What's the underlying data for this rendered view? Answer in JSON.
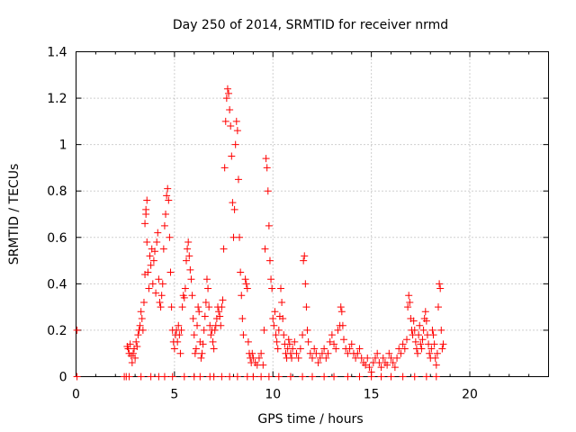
{
  "chart_data": {
    "type": "scatter",
    "title": "Day 250 of 2014, SRMTID for receiver nrmd",
    "xlabel": "GPS time / hours",
    "ylabel": "SRMTID / TECUs",
    "xlim": [
      0,
      24
    ],
    "ylim": [
      0,
      1.4
    ],
    "xticks": [
      "0",
      "5",
      "10",
      "15",
      "20"
    ],
    "yticks": [
      "0",
      "0.2",
      "0.4",
      "0.6",
      "0.8",
      "1",
      "1.2",
      "1.4"
    ],
    "grid": true,
    "marker": "plus",
    "color": "#ff0000",
    "series": [
      {
        "points": [
          [
            0.05,
            0.2
          ],
          [
            0.05,
            0.0
          ],
          [
            2.45,
            0.0
          ],
          [
            2.55,
            0.0
          ],
          [
            2.6,
            0.13
          ],
          [
            2.65,
            0.12
          ],
          [
            2.7,
            0.1
          ],
          [
            2.75,
            0.14
          ],
          [
            2.8,
            0.09
          ],
          [
            2.85,
            0.06
          ],
          [
            2.9,
            0.1
          ],
          [
            2.95,
            0.12
          ],
          [
            3.0,
            0.08
          ],
          [
            3.05,
            0.15
          ],
          [
            3.1,
            0.13
          ],
          [
            3.15,
            0.18
          ],
          [
            3.2,
            0.2
          ],
          [
            3.25,
            0.22
          ],
          [
            3.3,
            0.28
          ],
          [
            3.35,
            0.25
          ],
          [
            3.4,
            0.2
          ],
          [
            3.45,
            0.32
          ],
          [
            3.5,
            0.44
          ],
          [
            3.5,
            0.66
          ],
          [
            3.55,
            0.72
          ],
          [
            3.55,
            0.7
          ],
          [
            3.6,
            0.76
          ],
          [
            3.6,
            0.58
          ],
          [
            3.65,
            0.45
          ],
          [
            3.7,
            0.38
          ],
          [
            3.75,
            0.52
          ],
          [
            3.8,
            0.48
          ],
          [
            3.85,
            0.55
          ],
          [
            3.9,
            0.4
          ],
          [
            3.95,
            0.5
          ],
          [
            4.0,
            0.54
          ],
          [
            4.05,
            0.36
          ],
          [
            4.1,
            0.58
          ],
          [
            4.15,
            0.62
          ],
          [
            4.2,
            0.42
          ],
          [
            4.25,
            0.32
          ],
          [
            4.3,
            0.3
          ],
          [
            4.35,
            0.35
          ],
          [
            4.4,
            0.4
          ],
          [
            4.45,
            0.55
          ],
          [
            4.5,
            0.65
          ],
          [
            4.55,
            0.7
          ],
          [
            4.6,
            0.78
          ],
          [
            4.65,
            0.81
          ],
          [
            4.7,
            0.76
          ],
          [
            4.75,
            0.6
          ],
          [
            4.8,
            0.45
          ],
          [
            4.85,
            0.3
          ],
          [
            4.9,
            0.2
          ],
          [
            4.95,
            0.15
          ],
          [
            5.0,
            0.12
          ],
          [
            5.05,
            0.18
          ],
          [
            5.1,
            0.2
          ],
          [
            5.15,
            0.15
          ],
          [
            5.2,
            0.22
          ],
          [
            5.25,
            0.18
          ],
          [
            5.3,
            0.1
          ],
          [
            5.35,
            0.2
          ],
          [
            5.4,
            0.3
          ],
          [
            5.45,
            0.35
          ],
          [
            5.5,
            0.34
          ],
          [
            5.55,
            0.38
          ],
          [
            5.6,
            0.5
          ],
          [
            5.65,
            0.55
          ],
          [
            5.7,
            0.58
          ],
          [
            5.75,
            0.52
          ],
          [
            5.8,
            0.46
          ],
          [
            5.85,
            0.42
          ],
          [
            5.9,
            0.35
          ],
          [
            5.95,
            0.25
          ],
          [
            6.0,
            0.18
          ],
          [
            6.05,
            0.1
          ],
          [
            6.1,
            0.12
          ],
          [
            6.15,
            0.22
          ],
          [
            6.2,
            0.3
          ],
          [
            6.25,
            0.28
          ],
          [
            6.3,
            0.15
          ],
          [
            6.35,
            0.08
          ],
          [
            6.4,
            0.1
          ],
          [
            6.45,
            0.14
          ],
          [
            6.5,
            0.2
          ],
          [
            6.55,
            0.26
          ],
          [
            6.6,
            0.32
          ],
          [
            6.65,
            0.42
          ],
          [
            6.7,
            0.38
          ],
          [
            6.75,
            0.3
          ],
          [
            6.8,
            0.22
          ],
          [
            6.85,
            0.18
          ],
          [
            6.9,
            0.2
          ],
          [
            6.95,
            0.15
          ],
          [
            7.0,
            0.12
          ],
          [
            7.05,
            0.2
          ],
          [
            7.1,
            0.22
          ],
          [
            7.15,
            0.25
          ],
          [
            7.2,
            0.3
          ],
          [
            7.25,
            0.28
          ],
          [
            7.3,
            0.26
          ],
          [
            7.35,
            0.22
          ],
          [
            7.4,
            0.3
          ],
          [
            7.45,
            0.33
          ],
          [
            7.5,
            0.55
          ],
          [
            7.55,
            0.9
          ],
          [
            7.6,
            1.1
          ],
          [
            7.65,
            1.2
          ],
          [
            7.7,
            1.24
          ],
          [
            7.75,
            1.22
          ],
          [
            7.8,
            1.15
          ],
          [
            7.85,
            1.08
          ],
          [
            7.9,
            0.95
          ],
          [
            7.95,
            0.75
          ],
          [
            8.0,
            0.6
          ],
          [
            8.05,
            0.72
          ],
          [
            8.1,
            1.0
          ],
          [
            8.15,
            1.1
          ],
          [
            8.2,
            1.06
          ],
          [
            8.25,
            0.85
          ],
          [
            8.3,
            0.6
          ],
          [
            8.35,
            0.45
          ],
          [
            8.4,
            0.35
          ],
          [
            8.45,
            0.25
          ],
          [
            8.5,
            0.18
          ],
          [
            8.6,
            0.42
          ],
          [
            8.65,
            0.4
          ],
          [
            8.7,
            0.38
          ],
          [
            8.75,
            0.15
          ],
          [
            8.8,
            0.1
          ],
          [
            8.85,
            0.08
          ],
          [
            8.9,
            0.06
          ],
          [
            8.95,
            0.1
          ],
          [
            9.0,
            0.08
          ],
          [
            9.1,
            0.06
          ],
          [
            9.2,
            0.05
          ],
          [
            9.3,
            0.08
          ],
          [
            9.4,
            0.1
          ],
          [
            9.5,
            0.05
          ],
          [
            9.55,
            0.2
          ],
          [
            9.6,
            0.55
          ],
          [
            9.65,
            0.94
          ],
          [
            9.7,
            0.9
          ],
          [
            9.75,
            0.8
          ],
          [
            9.8,
            0.65
          ],
          [
            9.85,
            0.5
          ],
          [
            9.9,
            0.42
          ],
          [
            9.95,
            0.38
          ],
          [
            10.0,
            0.25
          ],
          [
            10.05,
            0.22
          ],
          [
            10.1,
            0.28
          ],
          [
            10.15,
            0.18
          ],
          [
            10.2,
            0.15
          ],
          [
            10.25,
            0.12
          ],
          [
            10.3,
            0.2
          ],
          [
            10.35,
            0.26
          ],
          [
            10.4,
            0.38
          ],
          [
            10.45,
            0.32
          ],
          [
            10.5,
            0.25
          ],
          [
            10.55,
            0.18
          ],
          [
            10.6,
            0.14
          ],
          [
            10.65,
            0.1
          ],
          [
            10.7,
            0.08
          ],
          [
            10.75,
            0.12
          ],
          [
            10.8,
            0.16
          ],
          [
            10.85,
            0.14
          ],
          [
            10.9,
            0.1
          ],
          [
            10.95,
            0.08
          ],
          [
            11.0,
            0.12
          ],
          [
            11.1,
            0.15
          ],
          [
            11.2,
            0.1
          ],
          [
            11.3,
            0.08
          ],
          [
            11.4,
            0.12
          ],
          [
            11.5,
            0.18
          ],
          [
            11.55,
            0.5
          ],
          [
            11.6,
            0.52
          ],
          [
            11.65,
            0.4
          ],
          [
            11.7,
            0.3
          ],
          [
            11.75,
            0.2
          ],
          [
            11.8,
            0.15
          ],
          [
            11.9,
            0.1
          ],
          [
            12.0,
            0.08
          ],
          [
            12.1,
            0.12
          ],
          [
            12.2,
            0.1
          ],
          [
            12.3,
            0.06
          ],
          [
            12.4,
            0.08
          ],
          [
            12.5,
            0.1
          ],
          [
            12.6,
            0.12
          ],
          [
            12.7,
            0.08
          ],
          [
            12.8,
            0.1
          ],
          [
            12.9,
            0.15
          ],
          [
            13.0,
            0.18
          ],
          [
            13.1,
            0.14
          ],
          [
            13.2,
            0.12
          ],
          [
            13.3,
            0.2
          ],
          [
            13.4,
            0.22
          ],
          [
            13.45,
            0.3
          ],
          [
            13.5,
            0.28
          ],
          [
            13.55,
            0.22
          ],
          [
            13.6,
            0.16
          ],
          [
            13.7,
            0.12
          ],
          [
            13.8,
            0.1
          ],
          [
            13.9,
            0.12
          ],
          [
            14.0,
            0.14
          ],
          [
            14.1,
            0.1
          ],
          [
            14.2,
            0.08
          ],
          [
            14.3,
            0.1
          ],
          [
            14.4,
            0.12
          ],
          [
            14.5,
            0.08
          ],
          [
            14.6,
            0.06
          ],
          [
            14.7,
            0.05
          ],
          [
            14.8,
            0.08
          ],
          [
            14.9,
            0.04
          ],
          [
            15.0,
            0.02
          ],
          [
            15.1,
            0.06
          ],
          [
            15.2,
            0.08
          ],
          [
            15.3,
            0.1
          ],
          [
            15.4,
            0.06
          ],
          [
            15.5,
            0.04
          ],
          [
            15.6,
            0.08
          ],
          [
            15.7,
            0.06
          ],
          [
            15.8,
            0.05
          ],
          [
            15.9,
            0.1
          ],
          [
            16.0,
            0.08
          ],
          [
            16.1,
            0.06
          ],
          [
            16.2,
            0.04
          ],
          [
            16.3,
            0.08
          ],
          [
            16.4,
            0.12
          ],
          [
            16.5,
            0.1
          ],
          [
            16.6,
            0.14
          ],
          [
            16.7,
            0.12
          ],
          [
            16.8,
            0.16
          ],
          [
            16.85,
            0.3
          ],
          [
            16.9,
            0.35
          ],
          [
            16.95,
            0.32
          ],
          [
            17.0,
            0.25
          ],
          [
            17.05,
            0.2
          ],
          [
            17.1,
            0.18
          ],
          [
            17.15,
            0.24
          ],
          [
            17.2,
            0.2
          ],
          [
            17.25,
            0.15
          ],
          [
            17.3,
            0.12
          ],
          [
            17.35,
            0.1
          ],
          [
            17.4,
            0.18
          ],
          [
            17.45,
            0.22
          ],
          [
            17.5,
            0.14
          ],
          [
            17.55,
            0.12
          ],
          [
            17.6,
            0.16
          ],
          [
            17.65,
            0.2
          ],
          [
            17.7,
            0.25
          ],
          [
            17.75,
            0.28
          ],
          [
            17.8,
            0.24
          ],
          [
            17.85,
            0.18
          ],
          [
            17.9,
            0.14
          ],
          [
            17.95,
            0.1
          ],
          [
            18.0,
            0.08
          ],
          [
            18.05,
            0.12
          ],
          [
            18.1,
            0.2
          ],
          [
            18.15,
            0.18
          ],
          [
            18.2,
            0.14
          ],
          [
            18.25,
            0.08
          ],
          [
            18.3,
            0.05
          ],
          [
            18.35,
            0.1
          ],
          [
            18.4,
            0.3
          ],
          [
            18.45,
            0.4
          ],
          [
            18.5,
            0.38
          ],
          [
            18.55,
            0.2
          ],
          [
            18.6,
            0.12
          ],
          [
            18.65,
            0.14
          ],
          [
            2.7,
            0.0
          ],
          [
            3.3,
            0.0
          ],
          [
            3.8,
            0.0
          ],
          [
            4.2,
            0.0
          ],
          [
            4.5,
            0.0
          ],
          [
            4.9,
            0.0
          ],
          [
            5.5,
            0.0
          ],
          [
            6.0,
            0.0
          ],
          [
            6.3,
            0.0
          ],
          [
            6.8,
            0.0
          ],
          [
            7.0,
            0.0
          ],
          [
            7.4,
            0.0
          ],
          [
            7.8,
            0.0
          ],
          [
            8.2,
            0.0
          ],
          [
            8.7,
            0.0
          ],
          [
            9.0,
            0.0
          ],
          [
            9.4,
            0.0
          ],
          [
            9.8,
            0.0
          ],
          [
            10.3,
            0.0
          ],
          [
            10.9,
            0.0
          ],
          [
            11.5,
            0.0
          ],
          [
            12.0,
            0.0
          ],
          [
            12.6,
            0.0
          ],
          [
            13.1,
            0.0
          ],
          [
            13.8,
            0.0
          ],
          [
            14.4,
            0.0
          ],
          [
            15.0,
            0.0
          ],
          [
            15.5,
            0.0
          ],
          [
            16.0,
            0.0
          ],
          [
            16.6,
            0.0
          ],
          [
            17.2,
            0.0
          ],
          [
            17.8,
            0.0
          ],
          [
            18.3,
            0.0
          ]
        ]
      }
    ]
  }
}
